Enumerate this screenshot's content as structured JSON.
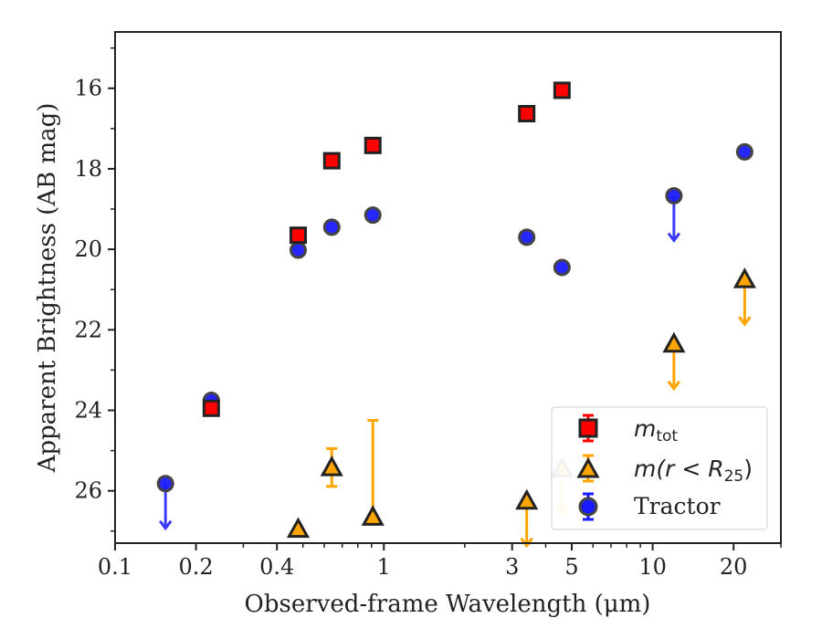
{
  "chart_data": {
    "type": "scatter",
    "title": "",
    "xlabel": "Observed-frame Wavelength (μm)",
    "ylabel": "Apparent Brightness (AB mag)",
    "xscale": "log",
    "xlim": [
      0.1,
      30
    ],
    "ylim": [
      27.3,
      14.6
    ],
    "y_inverted": true,
    "xticks": [
      0.1,
      0.2,
      0.4,
      1,
      3,
      5,
      10,
      20
    ],
    "xtick_labels": [
      "0.1",
      "0.2",
      "0.4",
      "1",
      "3",
      "5",
      "10",
      "20"
    ],
    "yticks": [
      16,
      18,
      20,
      22,
      24,
      26
    ],
    "ytick_labels": [
      "16",
      "18",
      "20",
      "22",
      "24",
      "26"
    ],
    "legend_position": "lower-right",
    "legend": [
      "m_tot",
      "m(r < R_25)",
      "Tractor"
    ],
    "series": [
      {
        "name": "m_tot",
        "marker": "square",
        "color": "#ff0000",
        "points": [
          {
            "x": 0.228,
            "y": 23.95,
            "err": 0.12
          },
          {
            "x": 0.48,
            "y": 19.65,
            "err": 0.08
          },
          {
            "x": 0.64,
            "y": 17.8,
            "err": 0.06
          },
          {
            "x": 0.91,
            "y": 17.42,
            "err": 0.06
          },
          {
            "x": 3.4,
            "y": 16.63,
            "err": 0.06
          },
          {
            "x": 4.6,
            "y": 16.05,
            "err": 0.06
          }
        ]
      },
      {
        "name": "m(r < R_25)",
        "marker": "triangle",
        "color": "#ffa500",
        "points": [
          {
            "x": 0.48,
            "y": 26.95,
            "upper_limit": false
          },
          {
            "x": 0.64,
            "y": 25.42,
            "err_low": 0.47,
            "err_high": 0.47
          },
          {
            "x": 0.91,
            "y": 26.65,
            "err_low": 2.4,
            "err_high": 0
          },
          {
            "x": 3.4,
            "y": 26.25,
            "upper_limit": true
          },
          {
            "x": 4.6,
            "y": 25.45,
            "upper_limit": true,
            "faded": true
          },
          {
            "x": 12,
            "y": 22.35,
            "upper_limit": true
          },
          {
            "x": 22,
            "y": 20.75,
            "upper_limit": true
          }
        ]
      },
      {
        "name": "Tractor",
        "marker": "circle",
        "color": "#1a1aff",
        "points": [
          {
            "x": 0.154,
            "y": 25.82,
            "upper_limit": true
          },
          {
            "x": 0.228,
            "y": 23.75
          },
          {
            "x": 0.48,
            "y": 20.02
          },
          {
            "x": 0.64,
            "y": 19.45
          },
          {
            "x": 0.91,
            "y": 19.15
          },
          {
            "x": 3.4,
            "y": 19.7
          },
          {
            "x": 4.6,
            "y": 20.45
          },
          {
            "x": 12,
            "y": 18.67,
            "upper_limit": true
          },
          {
            "x": 22,
            "y": 17.58
          }
        ]
      }
    ]
  },
  "labels": {
    "legend_mtot_base": "m",
    "legend_mtot_sub": "tot",
    "legend_r25_pre": "m",
    "legend_r25_mid": "(r < R",
    "legend_r25_sub": "25",
    "legend_r25_post": ")",
    "legend_tractor": "Tractor"
  },
  "colors": {
    "red": "#ff0000",
    "orange": "#ffa500",
    "blue": "#1a1aff",
    "edge": "#222222"
  }
}
